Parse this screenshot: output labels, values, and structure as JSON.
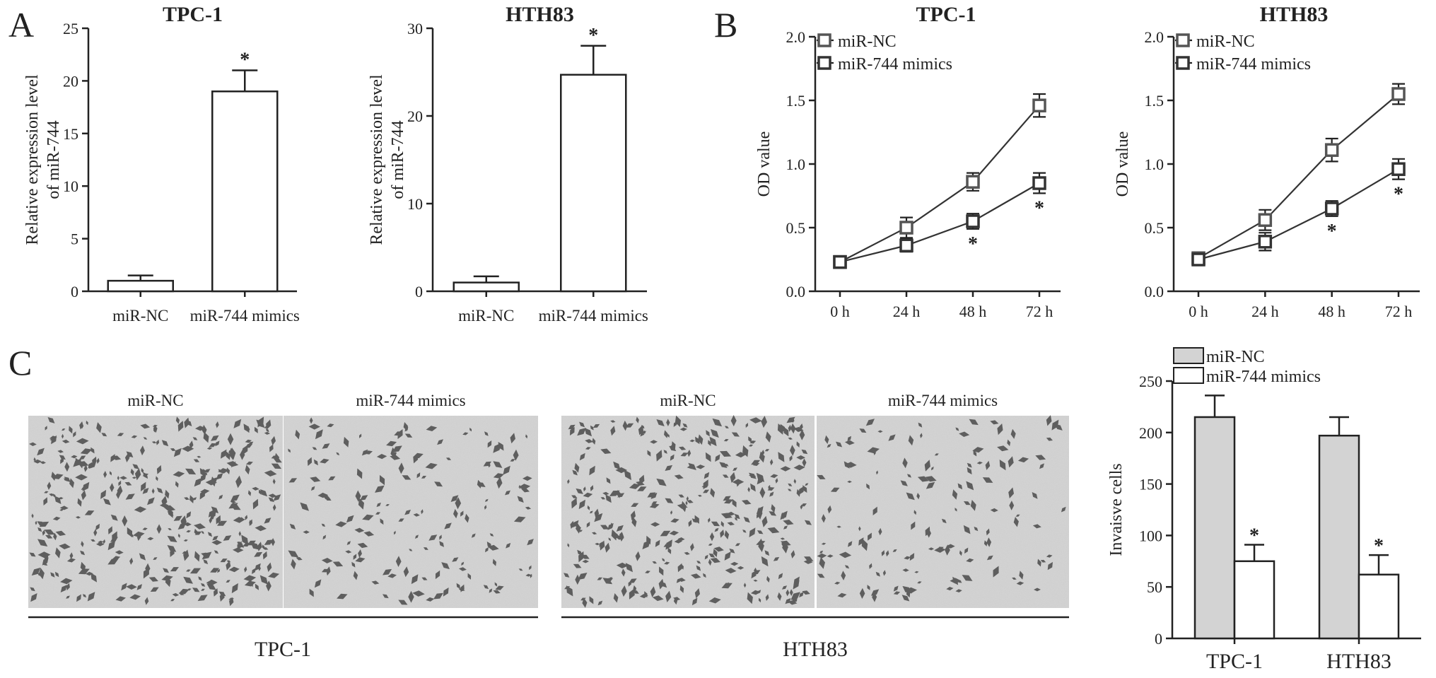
{
  "panels": {
    "a": "A",
    "b": "B",
    "c": "C"
  },
  "chart_data": [
    {
      "id": "a_tpc1",
      "type": "bar",
      "title": "TPC-1",
      "ylabel": "Relative expression level of miR-744",
      "ylabel_lines": [
        "Relative expression level",
        "of miR-744"
      ],
      "categories": [
        "miR-NC",
        "miR-744 mimics"
      ],
      "values": [
        1.0,
        19.0
      ],
      "errors": [
        0.5,
        2.0
      ],
      "significance": [
        "",
        "*"
      ],
      "ylim": [
        0,
        25
      ],
      "yticks": [
        0,
        5,
        10,
        15,
        20,
        25
      ]
    },
    {
      "id": "a_hth83",
      "type": "bar",
      "title": "HTH83",
      "ylabel": "Relative expression level of miR-744",
      "ylabel_lines": [
        "Relative expression level",
        "of miR-744"
      ],
      "categories": [
        "miR-NC",
        "miR-744 mimics"
      ],
      "values": [
        1.0,
        24.7
      ],
      "errors": [
        0.7,
        3.3
      ],
      "significance": [
        "",
        "*"
      ],
      "ylim": [
        0,
        30
      ],
      "yticks": [
        0,
        10,
        20,
        30
      ]
    },
    {
      "id": "b_tpc1",
      "type": "line",
      "title": "TPC-1",
      "ylabel": "OD value",
      "x": [
        "0 h",
        "24 h",
        "48 h",
        "72 h"
      ],
      "ylim": [
        0,
        2.0
      ],
      "yticks": [
        "0.0",
        "0.5",
        "1.0",
        "1.5",
        "2.0"
      ],
      "legend_position": "top-left",
      "series": [
        {
          "name": "miR-NC",
          "values": [
            0.23,
            0.5,
            0.86,
            1.46
          ],
          "errors": [
            0.04,
            0.08,
            0.07,
            0.09
          ],
          "significance": [
            "",
            "",
            "",
            ""
          ]
        },
        {
          "name": "miR-744 mimics",
          "values": [
            0.23,
            0.36,
            0.55,
            0.85
          ],
          "errors": [
            0.04,
            0.05,
            0.06,
            0.08
          ],
          "significance": [
            "",
            "",
            "*",
            "*"
          ]
        }
      ]
    },
    {
      "id": "b_hth83",
      "type": "line",
      "title": "HTH83",
      "ylabel": "OD value",
      "x": [
        "0 h",
        "24 h",
        "48 h",
        "72 h"
      ],
      "ylim": [
        0,
        2.0
      ],
      "yticks": [
        "0.0",
        "0.5",
        "1.0",
        "1.5",
        "2.0"
      ],
      "legend_position": "top-left",
      "series": [
        {
          "name": "miR-NC",
          "values": [
            0.26,
            0.56,
            1.11,
            1.55
          ],
          "errors": [
            0.04,
            0.08,
            0.09,
            0.08
          ],
          "significance": [
            "",
            "",
            "",
            ""
          ]
        },
        {
          "name": "miR-744 mimics",
          "values": [
            0.25,
            0.39,
            0.65,
            0.96
          ],
          "errors": [
            0.04,
            0.07,
            0.06,
            0.08
          ],
          "significance": [
            "",
            "",
            "*",
            "*"
          ]
        }
      ]
    },
    {
      "id": "c_invasion",
      "type": "bar",
      "ylabel": "Invaisve cells",
      "categories": [
        "TPC-1",
        "HTH83"
      ],
      "ylim": [
        0,
        250
      ],
      "yticks": [
        0,
        50,
        100,
        150,
        200,
        250
      ],
      "legend_position": "top",
      "series": [
        {
          "name": "miR-NC",
          "color": "#d3d3d3",
          "values": [
            215,
            197
          ],
          "errors": [
            21,
            18
          ],
          "significance": [
            "",
            ""
          ]
        },
        {
          "name": "miR-744 mimics",
          "color": "#ffffff",
          "values": [
            75,
            62
          ],
          "errors": [
            16,
            19
          ],
          "significance": [
            "*",
            "*"
          ]
        }
      ]
    }
  ],
  "micrographs": {
    "group_labels": [
      "TPC-1",
      "HTH83"
    ],
    "panels": [
      {
        "label": "miR-NC",
        "density": 0.9
      },
      {
        "label": "miR-744 mimics",
        "density": 0.4
      },
      {
        "label": "miR-NC",
        "density": 0.85
      },
      {
        "label": "miR-744 mimics",
        "density": 0.35
      }
    ]
  }
}
